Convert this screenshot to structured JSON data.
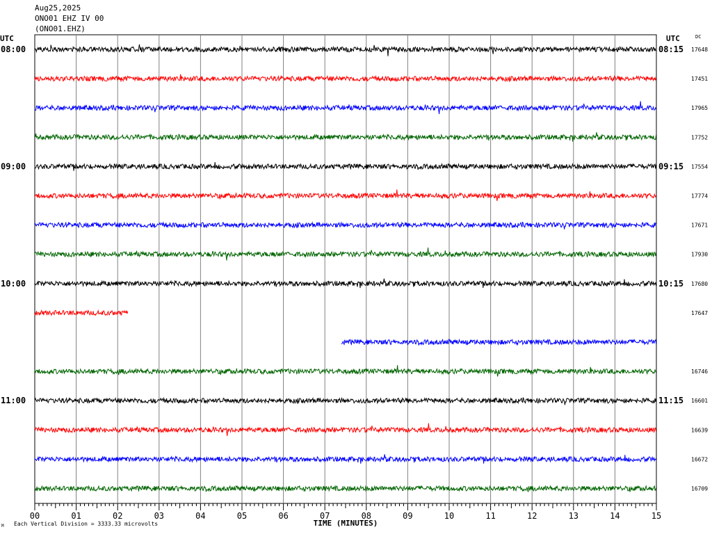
{
  "header": {
    "date": "Aug25,2025",
    "station": "ONO01 EHZ IV 00",
    "channel": "(ONO01.EHZ)"
  },
  "labels": {
    "utc_left": "UTC",
    "utc_right": "UTC",
    "dc": "DC",
    "footer": "Each Vertical Division = 3333.33 microvolts",
    "corner_mark": "M"
  },
  "colors": {
    "black": "#000000",
    "red": "#ff0000",
    "blue": "#0000ff",
    "green": "#006400",
    "grid": "#808080"
  },
  "chart_data": {
    "type": "line",
    "title": "Aug25,2025 ONO01 EHZ IV 00 (ONO01.EHZ)",
    "xlabel": "TIME (MINUTES)",
    "ylabel": "",
    "xlim": [
      0,
      15
    ],
    "x_ticks": [
      "00",
      "01",
      "02",
      "03",
      "04",
      "05",
      "06",
      "07",
      "08",
      "09",
      "10",
      "11",
      "12",
      "13",
      "14",
      "15"
    ],
    "grid": "vertical-minute-lines",
    "traces": [
      {
        "row": 0,
        "color": "black",
        "start_label": "08:00",
        "end_label": "08:15",
        "dc": "17648",
        "start_min": 0,
        "end_min": 15
      },
      {
        "row": 1,
        "color": "red",
        "start_label": "",
        "end_label": "",
        "dc": "17451",
        "start_min": 0,
        "end_min": 15
      },
      {
        "row": 2,
        "color": "blue",
        "start_label": "",
        "end_label": "",
        "dc": "17965",
        "start_min": 0,
        "end_min": 15
      },
      {
        "row": 3,
        "color": "green",
        "start_label": "",
        "end_label": "",
        "dc": "17752",
        "start_min": 0,
        "end_min": 15
      },
      {
        "row": 4,
        "color": "black",
        "start_label": "09:00",
        "end_label": "09:15",
        "dc": "17554",
        "start_min": 0,
        "end_min": 15
      },
      {
        "row": 5,
        "color": "red",
        "start_label": "",
        "end_label": "",
        "dc": "17774",
        "start_min": 0,
        "end_min": 15
      },
      {
        "row": 6,
        "color": "blue",
        "start_label": "",
        "end_label": "",
        "dc": "17671",
        "start_min": 0,
        "end_min": 15
      },
      {
        "row": 7,
        "color": "green",
        "start_label": "",
        "end_label": "",
        "dc": "17930",
        "start_min": 0,
        "end_min": 15
      },
      {
        "row": 8,
        "color": "black",
        "start_label": "10:00",
        "end_label": "10:15",
        "dc": "17680",
        "start_min": 0,
        "end_min": 15
      },
      {
        "row": 9,
        "color": "red",
        "start_label": "",
        "end_label": "",
        "dc": "17647",
        "start_min": 0,
        "end_min": 2.25
      },
      {
        "row": 10,
        "color": "blue",
        "start_label": "",
        "end_label": "",
        "dc": "",
        "start_min": 7.4,
        "end_min": 15
      },
      {
        "row": 11,
        "color": "green",
        "start_label": "",
        "end_label": "",
        "dc": "16746",
        "start_min": 0,
        "end_min": 15
      },
      {
        "row": 12,
        "color": "black",
        "start_label": "11:00",
        "end_label": "11:15",
        "dc": "16601",
        "start_min": 0,
        "end_min": 15
      },
      {
        "row": 13,
        "color": "red",
        "start_label": "",
        "end_label": "",
        "dc": "16639",
        "start_min": 0,
        "end_min": 15
      },
      {
        "row": 14,
        "color": "blue",
        "start_label": "",
        "end_label": "",
        "dc": "16672",
        "start_min": 0,
        "end_min": 15
      },
      {
        "row": 15,
        "color": "green",
        "start_label": "",
        "end_label": "",
        "dc": "16709",
        "start_min": 0,
        "end_min": 15
      }
    ]
  }
}
